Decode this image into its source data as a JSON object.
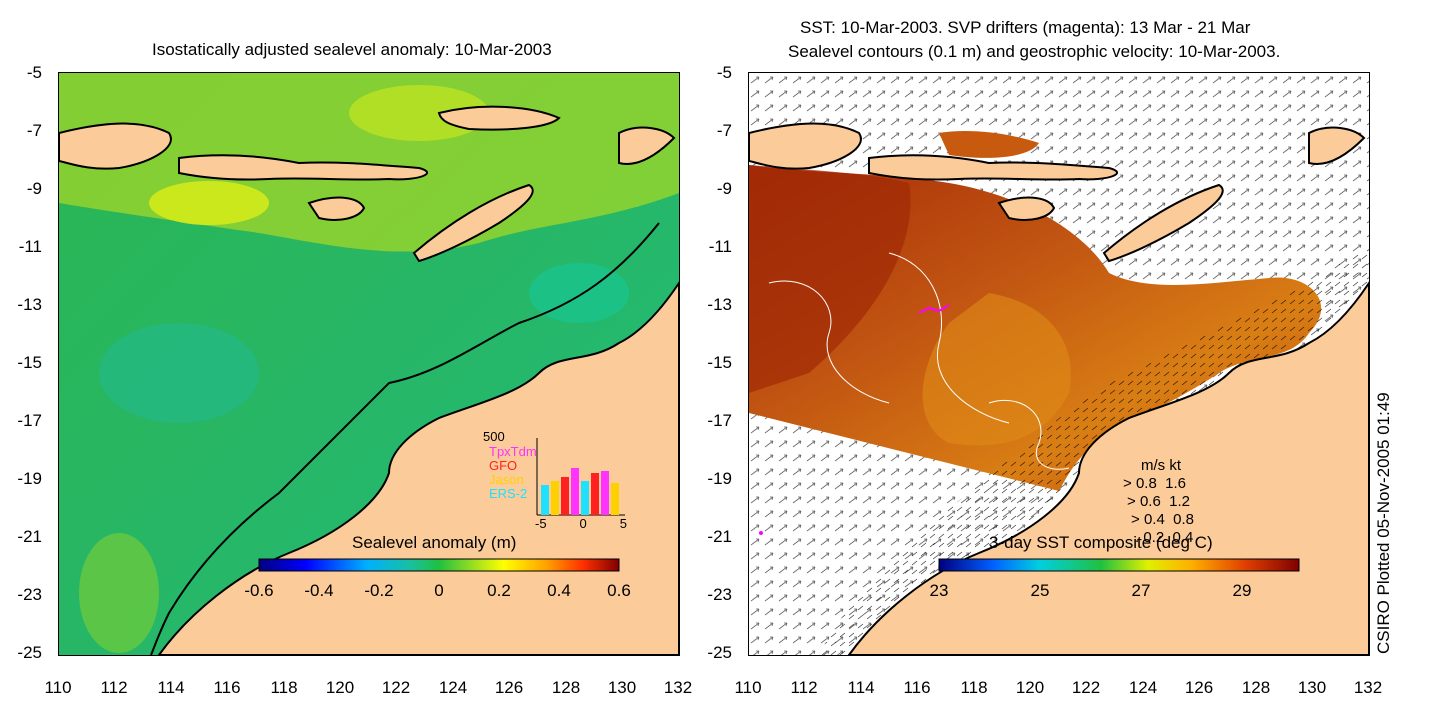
{
  "left": {
    "title": "Isostatically adjusted sealevel anomaly: 10-Mar-2003",
    "colorbar": {
      "title": "Sealevel anomaly (m)",
      "ticks": [
        "-0.6",
        "-0.4",
        "-0.2",
        "0",
        "0.2",
        "0.4",
        "0.6"
      ]
    },
    "histogram": {
      "ymax_label": "500",
      "satellites": [
        "TpxTdm",
        "GFO",
        "Jason",
        "ERS-2"
      ],
      "colors": [
        "#ff33ff",
        "#ff2020",
        "#ffd000",
        "#20e0ff"
      ],
      "x_ticks": [
        "-5",
        "0",
        "5"
      ]
    }
  },
  "right": {
    "title_line1": "SST: 10-Mar-2003. SVP drifters (magenta): 13 Mar - 21 Mar",
    "title_line2": "Sealevel contours (0.1 m) and geostrophic velocity: 10-Mar-2003.",
    "colorbar": {
      "title": "3-day SST composite (deg C)",
      "ticks": [
        "23",
        "25",
        "27",
        "29"
      ]
    },
    "velocity_legend": {
      "header": "m/s  kt",
      "rows": [
        {
          "ms": "0.8",
          "kt": "1.6"
        },
        {
          "ms": "0.6",
          "kt": "1.2"
        },
        {
          "ms": "0.4",
          "kt": "0.8"
        },
        {
          "ms": "0.2",
          "kt": "0.4"
        }
      ]
    }
  },
  "axes": {
    "y_ticks": [
      "-5",
      "-7",
      "-9",
      "-11",
      "-13",
      "-15",
      "-17",
      "-19",
      "-21",
      "-23",
      "-25"
    ],
    "x_ticks": [
      "110",
      "112",
      "114",
      "116",
      "118",
      "120",
      "122",
      "124",
      "126",
      "128",
      "130",
      "132"
    ]
  },
  "credit": "CSIRO Plotted 05-Nov-2005 01:49",
  "colors": {
    "land": "#fccb9a",
    "ocean_green": "#22b84a",
    "ocean_teal": "#1fbf86",
    "ocean_yellow": "#b6e61c",
    "sst_dark": "#a22a06",
    "sst_orange": "#d9770e"
  }
}
